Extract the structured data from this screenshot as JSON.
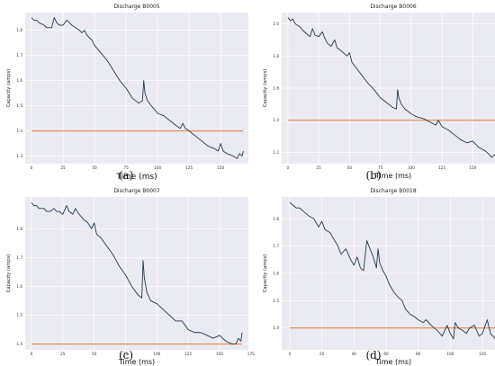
{
  "captions": [
    "(a)",
    "(b)",
    "(c)",
    "(d)"
  ],
  "chart_data": [
    {
      "type": "line",
      "title": "Discharge B0005",
      "xlabel": "Time (ms)",
      "ylabel": "Capacity (amps)",
      "xlim": [
        -5,
        172
      ],
      "ylim": [
        1.27,
        1.87
      ],
      "xticks": [
        0,
        25,
        50,
        75,
        100,
        125,
        150
      ],
      "yticks": [
        1.3,
        1.4,
        1.5,
        1.6,
        1.7,
        1.8
      ],
      "threshold": 1.4,
      "grid": true,
      "series": [
        {
          "x": [
            0,
            2,
            4,
            6,
            10,
            12,
            16,
            18,
            20,
            22,
            25,
            28,
            30,
            32,
            35,
            38,
            40,
            42,
            44,
            46,
            48,
            50,
            55,
            60,
            65,
            70,
            75,
            80,
            85,
            88,
            89,
            90,
            92,
            95,
            100,
            105,
            110,
            115,
            118,
            120,
            122,
            125,
            130,
            135,
            140,
            145,
            148,
            150,
            152,
            155,
            160,
            163,
            165,
            167,
            168
          ],
          "y": [
            1.85,
            1.84,
            1.84,
            1.83,
            1.82,
            1.81,
            1.81,
            1.85,
            1.83,
            1.82,
            1.82,
            1.84,
            1.83,
            1.82,
            1.81,
            1.8,
            1.79,
            1.8,
            1.78,
            1.77,
            1.76,
            1.74,
            1.71,
            1.68,
            1.64,
            1.6,
            1.57,
            1.53,
            1.51,
            1.52,
            1.6,
            1.55,
            1.52,
            1.5,
            1.47,
            1.46,
            1.44,
            1.42,
            1.41,
            1.43,
            1.41,
            1.4,
            1.38,
            1.36,
            1.34,
            1.33,
            1.32,
            1.35,
            1.32,
            1.31,
            1.3,
            1.29,
            1.31,
            1.3,
            1.32
          ]
        }
      ]
    },
    {
      "type": "line",
      "title": "Discharge B0006",
      "xlabel": "Time (ms)",
      "ylabel": "Capacity (amps)",
      "xlim": [
        -5,
        176
      ],
      "ylim": [
        1.13,
        2.07
      ],
      "xticks": [
        0,
        25,
        50,
        75,
        100,
        125,
        150,
        175
      ],
      "yticks": [
        1.2,
        1.4,
        1.6,
        1.8,
        2.0
      ],
      "threshold": 1.4,
      "grid": true,
      "series": [
        {
          "x": [
            0,
            2,
            4,
            6,
            8,
            10,
            12,
            15,
            18,
            20,
            22,
            25,
            28,
            30,
            32,
            35,
            38,
            40,
            42,
            45,
            48,
            50,
            52,
            55,
            60,
            65,
            70,
            75,
            80,
            85,
            88,
            89,
            90,
            92,
            95,
            100,
            105,
            110,
            115,
            120,
            122,
            125,
            130,
            135,
            140,
            145,
            150,
            155,
            160,
            163,
            165,
            167,
            168
          ],
          "y": [
            2.04,
            2.02,
            2.03,
            2.0,
            1.99,
            1.98,
            1.96,
            1.94,
            1.92,
            1.97,
            1.93,
            1.92,
            1.95,
            1.91,
            1.88,
            1.86,
            1.9,
            1.85,
            1.84,
            1.82,
            1.8,
            1.82,
            1.76,
            1.73,
            1.68,
            1.63,
            1.59,
            1.54,
            1.51,
            1.48,
            1.47,
            1.59,
            1.54,
            1.5,
            1.47,
            1.44,
            1.42,
            1.41,
            1.39,
            1.37,
            1.4,
            1.36,
            1.34,
            1.31,
            1.28,
            1.26,
            1.27,
            1.23,
            1.21,
            1.19,
            1.17,
            1.18,
            1.19
          ]
        }
      ]
    },
    {
      "type": "line",
      "title": "Discharge B0007",
      "xlabel": "Time (ms)",
      "ylabel": "Capacity (amps)",
      "xlim": [
        -5,
        173
      ],
      "ylim": [
        1.38,
        1.91
      ],
      "xticks": [
        0,
        25,
        50,
        75,
        100,
        125,
        150,
        175
      ],
      "yticks": [
        1.4,
        1.5,
        1.6,
        1.7,
        1.8
      ],
      "threshold": 1.4,
      "grid": true,
      "series": [
        {
          "x": [
            0,
            2,
            4,
            6,
            10,
            12,
            15,
            18,
            20,
            22,
            25,
            28,
            30,
            33,
            35,
            38,
            40,
            42,
            45,
            48,
            50,
            52,
            55,
            60,
            65,
            70,
            75,
            80,
            85,
            88,
            89,
            90,
            92,
            95,
            100,
            105,
            110,
            115,
            120,
            125,
            130,
            135,
            140,
            145,
            150,
            155,
            160,
            163,
            165,
            167,
            168
          ],
          "y": [
            1.89,
            1.88,
            1.88,
            1.87,
            1.87,
            1.86,
            1.86,
            1.87,
            1.86,
            1.86,
            1.85,
            1.88,
            1.86,
            1.85,
            1.87,
            1.85,
            1.84,
            1.83,
            1.82,
            1.8,
            1.82,
            1.78,
            1.77,
            1.74,
            1.71,
            1.67,
            1.64,
            1.6,
            1.57,
            1.56,
            1.69,
            1.63,
            1.58,
            1.55,
            1.54,
            1.52,
            1.5,
            1.48,
            1.48,
            1.45,
            1.44,
            1.44,
            1.43,
            1.42,
            1.43,
            1.41,
            1.4,
            1.4,
            1.42,
            1.41,
            1.44
          ]
        }
      ]
    },
    {
      "type": "line",
      "title": "Discharge B0018",
      "xlabel": "Time (ms)",
      "ylabel": "Capacity (amps)",
      "xlim": [
        -5,
        134
      ],
      "ylim": [
        1.32,
        1.88
      ],
      "xticks": [
        0,
        20,
        40,
        60,
        80,
        100,
        120
      ],
      "yticks": [
        1.4,
        1.5,
        1.6,
        1.7,
        1.8
      ],
      "threshold": 1.4,
      "grid": true,
      "series": [
        {
          "x": [
            0,
            2,
            4,
            6,
            8,
            10,
            12,
            15,
            18,
            20,
            22,
            25,
            28,
            30,
            32,
            35,
            38,
            40,
            42,
            44,
            46,
            48,
            50,
            52,
            54,
            55,
            56,
            58,
            60,
            62,
            65,
            68,
            70,
            72,
            75,
            78,
            80,
            83,
            85,
            88,
            90,
            92,
            95,
            98,
            100,
            102,
            103,
            105,
            108,
            110,
            112,
            115,
            118,
            120,
            123,
            125,
            128,
            130
          ],
          "y": [
            1.86,
            1.85,
            1.84,
            1.84,
            1.83,
            1.82,
            1.81,
            1.8,
            1.77,
            1.79,
            1.76,
            1.75,
            1.72,
            1.7,
            1.67,
            1.69,
            1.65,
            1.63,
            1.66,
            1.62,
            1.61,
            1.72,
            1.69,
            1.66,
            1.62,
            1.69,
            1.64,
            1.61,
            1.59,
            1.56,
            1.53,
            1.51,
            1.5,
            1.47,
            1.45,
            1.44,
            1.43,
            1.42,
            1.43,
            1.41,
            1.4,
            1.39,
            1.37,
            1.41,
            1.38,
            1.36,
            1.42,
            1.4,
            1.39,
            1.38,
            1.4,
            1.41,
            1.37,
            1.38,
            1.43,
            1.38,
            1.36,
            1.35
          ]
        }
      ]
    }
  ]
}
